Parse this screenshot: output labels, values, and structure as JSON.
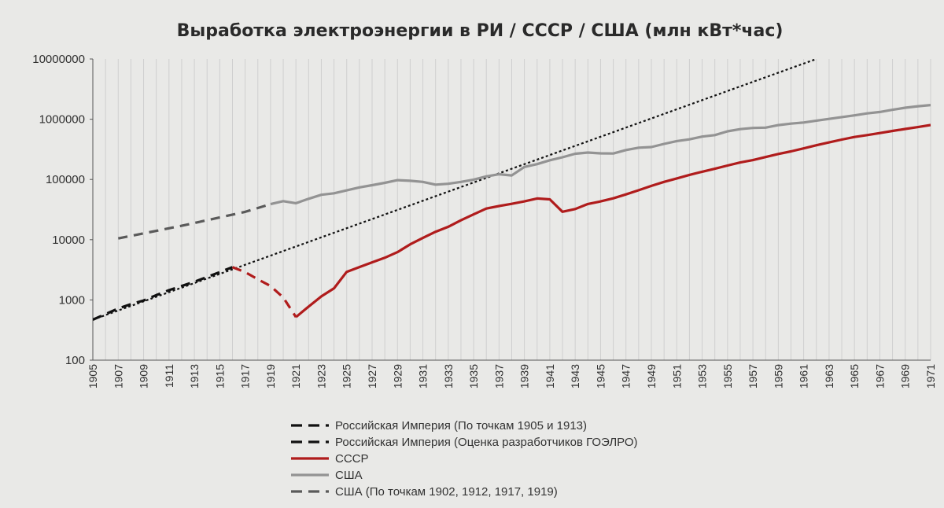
{
  "chart_data": {
    "type": "line",
    "title": "Выработка электроэнергии в РИ / СССР / США (млн кВт*час)",
    "y_scale": "log",
    "ylim": [
      100,
      10000000
    ],
    "y_ticks": [
      "10000000",
      "1000000",
      "100000",
      "10000",
      "1000",
      "100"
    ],
    "x_range": [
      1905,
      1971
    ],
    "x_ticks": [
      "1905",
      "1907",
      "1909",
      "1911",
      "1913",
      "1915",
      "1917",
      "1919",
      "1921",
      "1923",
      "1925",
      "1927",
      "1929",
      "1931",
      "1933",
      "1935",
      "1937",
      "1939",
      "1941",
      "1943",
      "1945",
      "1947",
      "1949",
      "1951",
      "1953",
      "1955",
      "1957",
      "1959",
      "1961",
      "1963",
      "1965",
      "1967",
      "1969",
      "1971"
    ],
    "grid": "vertical",
    "legend_position": "bottom",
    "series": [
      {
        "name": "Российская Империя (По точкам 1905 и 1913)",
        "color": "#111111",
        "style": "dotted",
        "x": [
          1905,
          1962
        ],
        "y": [
          470,
          10000000
        ]
      },
      {
        "name": "Российская Империя (Оценка разработчиков ГОЭЛРО)",
        "color": "#111111",
        "style": "dashed",
        "x": [
          1905,
          1906,
          1907,
          1908,
          1909,
          1910,
          1911,
          1912,
          1913,
          1914,
          1915,
          1916
        ],
        "y": [
          470,
          580,
          720,
          850,
          980,
          1200,
          1450,
          1700,
          2000,
          2400,
          2900,
          3500
        ]
      },
      {
        "name": "Российская Империя (Оценка разработчиков ГОЭЛРО)",
        "color": "#b01c1c",
        "style": "dashed",
        "x": [
          1916,
          1917,
          1918,
          1919,
          1920,
          1921
        ],
        "y": [
          3500,
          2900,
          2200,
          1700,
          1100,
          520
        ]
      },
      {
        "name": "СССР",
        "color": "#b01c1c",
        "style": "solid",
        "x": [
          1921,
          1922,
          1923,
          1924,
          1925,
          1926,
          1927,
          1928,
          1929,
          1930,
          1931,
          1932,
          1933,
          1934,
          1935,
          1936,
          1937,
          1938,
          1939,
          1940,
          1941,
          1942,
          1943,
          1944,
          1945,
          1946,
          1947,
          1948,
          1949,
          1950,
          1951,
          1952,
          1953,
          1954,
          1955,
          1956,
          1957,
          1958,
          1959,
          1960,
          1961,
          1962,
          1963,
          1964,
          1965,
          1966,
          1967,
          1968,
          1969,
          1970,
          1971
        ],
        "y": [
          520,
          775,
          1146,
          1562,
          2925,
          3508,
          4205,
          5007,
          6224,
          8368,
          10686,
          13540,
          16357,
          21011,
          26288,
          32837,
          36173,
          39366,
          43203,
          48309,
          46700,
          29068,
          32300,
          39200,
          43257,
          48571,
          56487,
          66341,
          78258,
          91226,
          104022,
          119116,
          134325,
          150695,
          170225,
          191653,
          209688,
          235350,
          264963,
          292274,
          327612,
          369275,
          412418,
          458902,
          506672,
          544560,
          589003,
          638661,
          689050,
          740926,
          800360
        ]
      },
      {
        "name": "США",
        "color": "#939393",
        "style": "solid",
        "x": [
          1919,
          1920,
          1921,
          1922,
          1923,
          1924,
          1925,
          1926,
          1927,
          1928,
          1929,
          1930,
          1931,
          1932,
          1933,
          1934,
          1935,
          1936,
          1937,
          1938,
          1939,
          1940,
          1941,
          1942,
          1943,
          1944,
          1945,
          1946,
          1947,
          1948,
          1949,
          1950,
          1951,
          1952,
          1953,
          1954,
          1955,
          1956,
          1957,
          1958,
          1959,
          1960,
          1961,
          1962,
          1963,
          1964,
          1965,
          1966,
          1967,
          1968,
          1969,
          1970,
          1971
        ],
        "y": [
          38900,
          43600,
          40300,
          47700,
          55700,
          59000,
          65900,
          73800,
          80200,
          88000,
          97400,
          95000,
          91100,
          82000,
          84800,
          91100,
          99400,
          112600,
          121800,
          116600,
          161300,
          179900,
          208300,
          233100,
          267500,
          279500,
          271300,
          269600,
          307400,
          336800,
          345100,
          388700,
          433400,
          463100,
          514200,
          544600,
          629000,
          684800,
          716400,
          724800,
          797500,
          844200,
          881500,
          946500,
          1011400,
          1083700,
          1157600,
          1249400,
          1317300,
          1436000,
          1552800,
          1639800,
          1717500
        ]
      },
      {
        "name": "США (По точкам 1902, 1912, 1917, 1919)",
        "color": "#5a5a5a",
        "style": "dashed",
        "x": [
          1907,
          1912,
          1917,
          1919
        ],
        "y": [
          10500,
          17000,
          29000,
          38900
        ]
      }
    ]
  },
  "legend": {
    "items": [
      {
        "label": "Российская Империя (По точкам 1905 и 1913)",
        "color": "#111111",
        "style": "dotted"
      },
      {
        "label": "Российская Империя (Оценка разработчиков ГОЭЛРО)",
        "color": "#111111",
        "style": "dashed"
      },
      {
        "label": "СССР",
        "color": "#b01c1c",
        "style": "solid"
      },
      {
        "label": "США",
        "color": "#939393",
        "style": "solid"
      },
      {
        "label": "США (По точкам 1902, 1912, 1917, 1919)",
        "color": "#5a5a5a",
        "style": "dashed"
      }
    ]
  }
}
